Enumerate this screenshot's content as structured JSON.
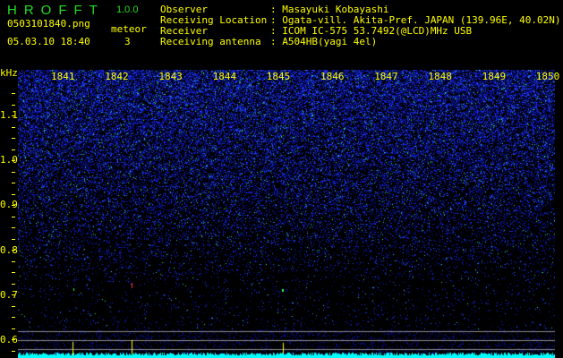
{
  "app": {
    "title": "HROFFT",
    "version": "1.0.0"
  },
  "file": {
    "name": "0503101840.png",
    "datetime": "05.03.10 18:40"
  },
  "meteor": {
    "label": "meteor",
    "count": "3"
  },
  "info": [
    {
      "label": "Observer",
      "value": "Masayuki Kobayashi"
    },
    {
      "label": "Receiving Location",
      "value": "Ogata-vill. Akita-Pref. JAPAN (139.96E, 40.02N)"
    },
    {
      "label": "Receiver",
      "value": "ICOM IC-575 53.7492(@LCD)MHz USB"
    },
    {
      "label": "Receiving antenna",
      "value": "A504HB(yagi 4el)"
    }
  ],
  "spectrogram": {
    "y_unit": "kHz",
    "y_ticks": [
      "1.1",
      "1.0",
      "0.9",
      "0.8",
      "0.7",
      "0.6"
    ],
    "x_ticks": [
      "1841",
      "1842",
      "1843",
      "1844",
      "1845",
      "1846",
      "1847",
      "1848",
      "1849",
      "1850"
    ],
    "colors": {
      "background": "#000000",
      "noise": "#1a2cff",
      "baseline": "#00ffff",
      "label": "#ffff00",
      "meteor_marker": "#ffff00"
    }
  }
}
